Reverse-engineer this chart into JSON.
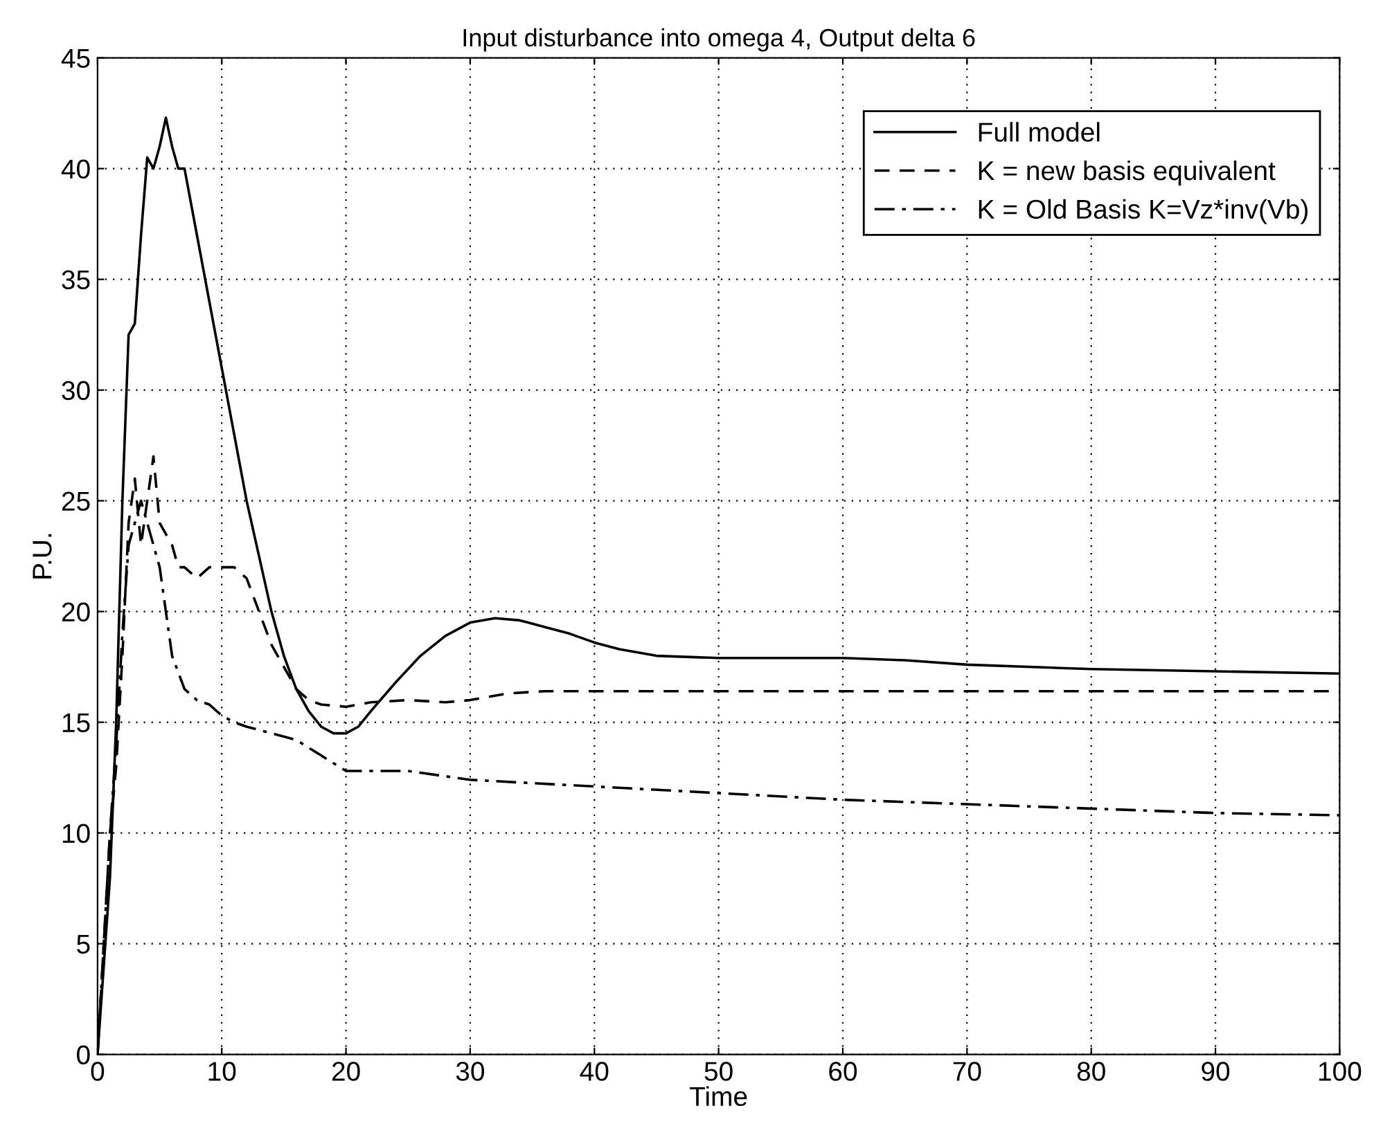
{
  "chart_data": {
    "type": "line",
    "title": "Input disturbance into omega 4, Output delta 6",
    "xlabel": "Time",
    "ylabel": "P.U.",
    "xlim": [
      0,
      100
    ],
    "xticks": [
      0,
      10,
      20,
      30,
      40,
      50,
      60,
      70,
      80,
      90,
      100
    ],
    "ylim": [
      0,
      45
    ],
    "yticks": [
      0,
      5,
      10,
      15,
      20,
      25,
      30,
      35,
      40,
      45
    ],
    "grid": true,
    "legend": "top right",
    "marker": "none",
    "series": [
      {
        "name": "Full model",
        "color": "#000000",
        "line_style": "solid",
        "x": [
          0,
          0.5,
          1,
          1.5,
          2,
          2.5,
          3,
          3.5,
          4,
          4.5,
          5,
          5.5,
          6,
          6.5,
          7,
          8,
          9,
          10,
          11,
          12,
          13,
          14,
          15,
          16,
          17,
          18,
          19,
          20,
          21,
          22,
          24,
          26,
          28,
          30,
          32,
          34,
          36,
          38,
          40,
          42,
          45,
          50,
          55,
          60,
          65,
          70,
          80,
          90,
          100
        ],
        "values": [
          0,
          4,
          8,
          15,
          25,
          32.5,
          33,
          37,
          40.5,
          40,
          41,
          42.3,
          41,
          40,
          40,
          37,
          34,
          31,
          28,
          25,
          22.5,
          20,
          18,
          16.5,
          15.5,
          14.8,
          14.5,
          14.5,
          14.8,
          15.5,
          16.8,
          18,
          18.9,
          19.5,
          19.7,
          19.6,
          19.3,
          19,
          18.6,
          18.3,
          18,
          17.9,
          17.9,
          17.9,
          17.8,
          17.6,
          17.4,
          17.3,
          17.2
        ]
      },
      {
        "name": "K = new basis equivalent",
        "color": "#000000",
        "line_style": "dashed",
        "x": [
          0,
          0.5,
          1,
          1.5,
          2,
          2.5,
          3,
          3.5,
          4,
          4.5,
          5,
          6,
          6.5,
          7,
          8,
          9,
          10,
          11,
          12,
          13,
          14,
          15,
          16,
          17,
          18,
          20,
          22,
          25,
          28,
          30,
          33,
          36,
          40,
          60,
          100
        ],
        "values": [
          0,
          5,
          10,
          13,
          18,
          24,
          26,
          23,
          25,
          27,
          24,
          23,
          22,
          22,
          21.5,
          22,
          22,
          22,
          21.5,
          20,
          18.5,
          17.5,
          16.5,
          16,
          15.8,
          15.7,
          15.9,
          16,
          15.9,
          16,
          16.3,
          16.4,
          16.4,
          16.4,
          16.4
        ]
      },
      {
        "name": "K = Old Basis K=Vz*inv(Vb)",
        "color": "#000000",
        "line_style": "dashdot",
        "x": [
          0,
          0.5,
          1,
          1.5,
          2,
          2.5,
          3,
          3.5,
          4,
          5,
          6,
          7,
          8,
          9,
          10,
          11,
          12,
          14,
          16,
          18,
          20,
          22,
          25,
          30,
          40,
          50,
          60,
          70,
          80,
          90,
          100
        ],
        "values": [
          0,
          5,
          10,
          14,
          19,
          23,
          24,
          25,
          24,
          22,
          18,
          16.5,
          16,
          15.8,
          15.3,
          15,
          14.8,
          14.5,
          14.2,
          13.5,
          12.8,
          12.8,
          12.8,
          12.4,
          12.1,
          11.8,
          11.5,
          11.3,
          11.1,
          10.9,
          10.8
        ]
      }
    ]
  }
}
